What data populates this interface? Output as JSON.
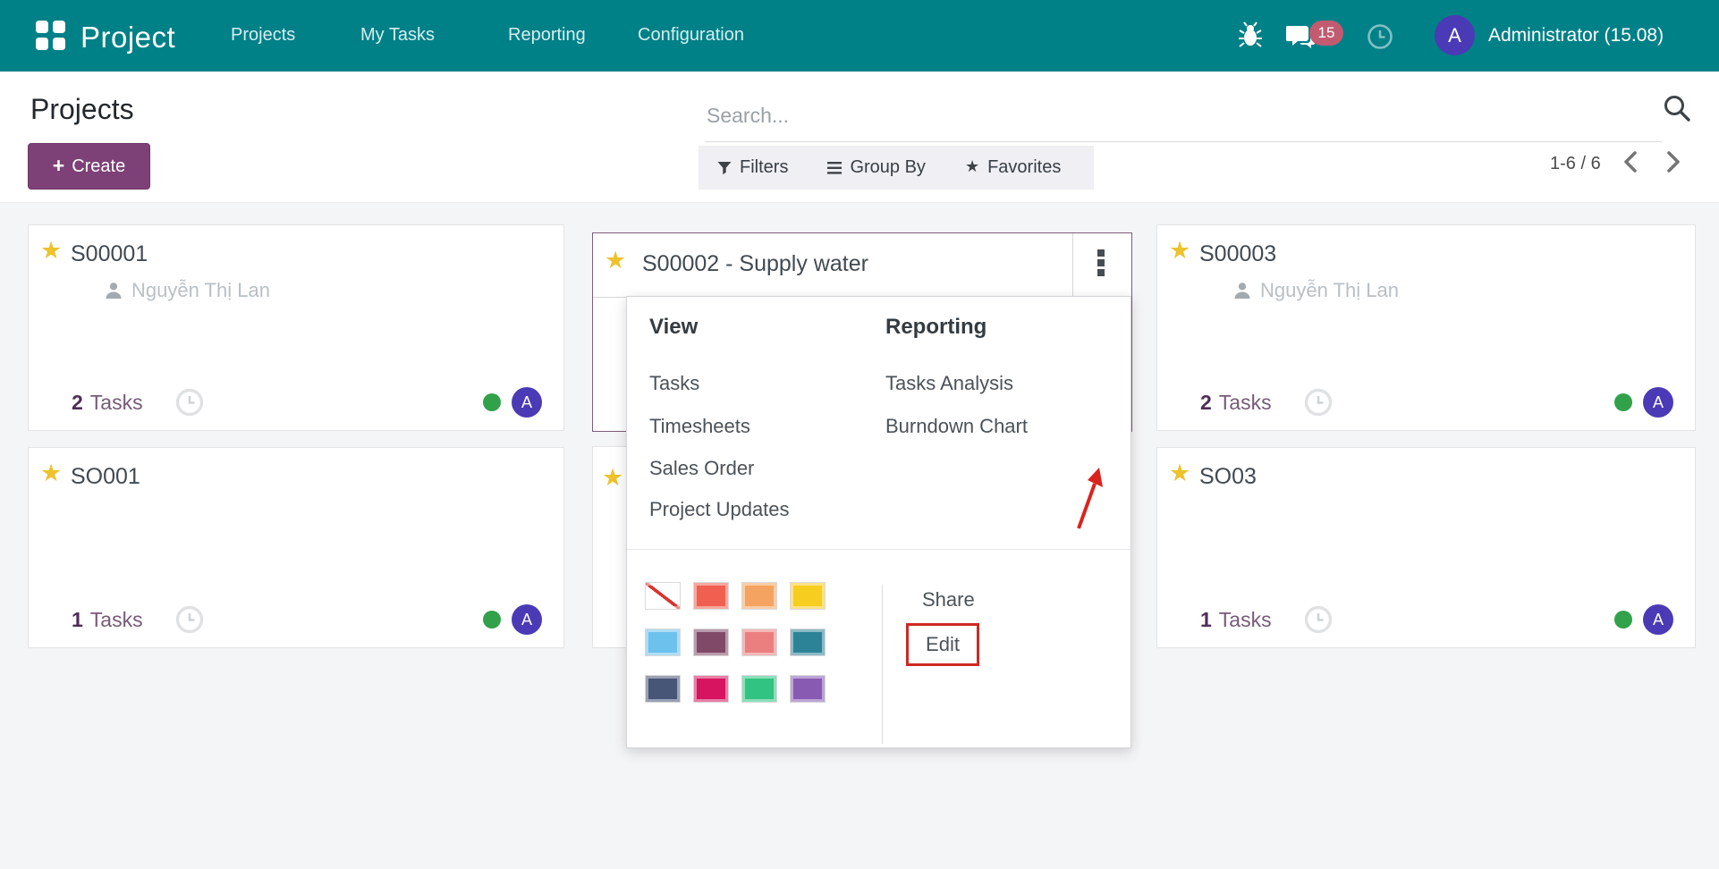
{
  "navbar": {
    "app_name": "Project",
    "menu_items": [
      "Projects",
      "My Tasks",
      "Reporting",
      "Configuration"
    ],
    "message_count": "15",
    "avatar_initial": "A",
    "user_label": "Administrator (15.08)",
    "bar_color": "#008087"
  },
  "control_panel": {
    "title": "Projects",
    "create_label": "Create",
    "search_placeholder": "Search...",
    "filters_label": "Filters",
    "group_by_label": "Group By",
    "favorites_label": "Favorites",
    "pager": "1-6 / 6"
  },
  "icons": {
    "star": "★"
  },
  "cards": [
    {
      "title": "S00001",
      "member": "Nguyễn Thị Lan",
      "task_count": "2",
      "task_label": "Tasks",
      "avatar_initial": "A"
    },
    {
      "title": "S00002 - Supply water"
    },
    {
      "title": "S00003",
      "member": "Nguyễn Thị Lan",
      "task_count": "2",
      "task_label": "Tasks",
      "avatar_initial": "A"
    },
    {
      "title": "SO001",
      "task_count": "1",
      "task_label": "Tasks",
      "avatar_initial": "A"
    },
    {
      "title": ""
    },
    {
      "title": "SO03",
      "task_count": "1",
      "task_label": "Tasks",
      "avatar_initial": "A"
    }
  ],
  "dropdown": {
    "view_header": "View",
    "view_items": [
      "Tasks",
      "Timesheets",
      "Sales Order",
      "Project Updates"
    ],
    "reporting_header": "Reporting",
    "reporting_items": [
      "Tasks Analysis",
      "Burndown Chart"
    ],
    "share_label": "Share",
    "edit_label": "Edit",
    "palette": [
      "none",
      "#F06050",
      "#F4A460",
      "#F7CD1F",
      "#6CC1ED",
      "#814968",
      "#EB7E7F",
      "#2C8397",
      "#475577",
      "#D6145F",
      "#30C381",
      "#885AB2"
    ]
  },
  "annotations": {
    "arrow_color": "#da231f",
    "edit_box_color": "#cf2823"
  }
}
